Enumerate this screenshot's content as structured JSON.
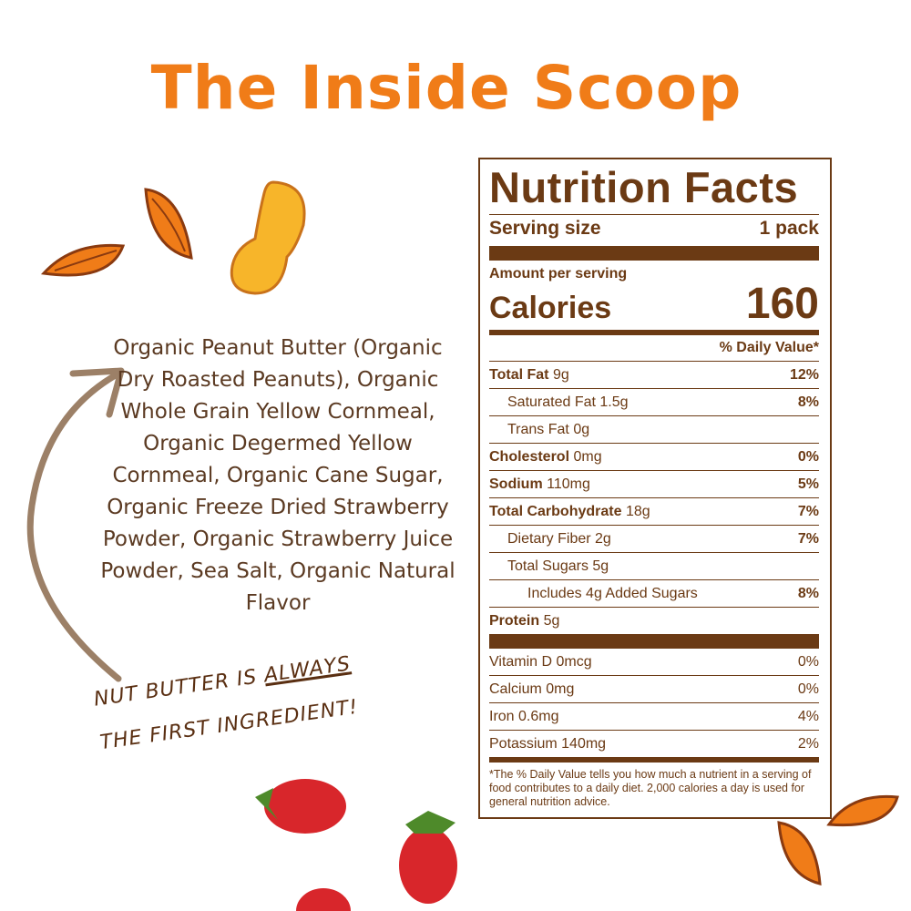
{
  "title": "The Inside Scoop",
  "ingredients": "Organic Peanut Butter (Organic Dry Roasted Peanuts), Organic Whole Grain Yellow Cornmeal, Organic Degermed Yellow Cornmeal, Organic Cane Sugar, Organic Freeze Dried Strawberry Powder, Organic Strawberry Juice Powder, Sea Salt, Organic Natural Flavor",
  "note": {
    "part1": "NUT BUTTER IS ",
    "emphasis": "ALWAYS",
    "part2": "THE FIRST INGREDIENT!"
  },
  "nutrition": {
    "title": "Nutrition Facts",
    "serving_label": "Serving size",
    "serving_value": "1 pack",
    "amount_per_serving": "Amount per serving",
    "calories_label": "Calories",
    "calories_value": "160",
    "dv_header": "% Daily Value*",
    "rows": [
      {
        "name": "Total Fat",
        "amount": "9g",
        "dv": "12%",
        "bold": true,
        "indent": 0
      },
      {
        "name": "Saturated Fat",
        "amount": "1.5g",
        "dv": "8%",
        "bold": false,
        "indent": 1
      },
      {
        "name": "Trans Fat",
        "amount": "0g",
        "dv": "",
        "bold": false,
        "indent": 1
      },
      {
        "name": "Cholesterol",
        "amount": "0mg",
        "dv": "0%",
        "bold": true,
        "indent": 0
      },
      {
        "name": "Sodium",
        "amount": "110mg",
        "dv": "5%",
        "bold": true,
        "indent": 0
      },
      {
        "name": "Total Carbohydrate",
        "amount": "18g",
        "dv": "7%",
        "bold": true,
        "indent": 0
      },
      {
        "name": "Dietary Fiber",
        "amount": "2g",
        "dv": "7%",
        "bold": false,
        "indent": 1
      },
      {
        "name": "Total Sugars",
        "amount": "5g",
        "dv": "",
        "bold": false,
        "indent": 1
      },
      {
        "name": "Includes 4g Added Sugars",
        "amount": "",
        "dv": "8%",
        "bold": false,
        "indent": 2
      },
      {
        "name": "Protein",
        "amount": "5g",
        "dv": "",
        "bold": true,
        "indent": 0
      }
    ],
    "vitamins": [
      {
        "name": "Vitamin D",
        "amount": "0mcg",
        "dv": "0%"
      },
      {
        "name": "Calcium",
        "amount": "0mg",
        "dv": "0%"
      },
      {
        "name": "Iron",
        "amount": "0.6mg",
        "dv": "4%"
      },
      {
        "name": "Potassium",
        "amount": "140mg",
        "dv": "2%"
      }
    ],
    "footnote": "*The % Daily Value tells you how much a nutrient in a serving of food contributes to a daily diet. 2,000 calories a day is used for general nutrition advice."
  },
  "colors": {
    "title": "#f07c18",
    "label": "#6b3a14",
    "arrow": "#9c8067"
  },
  "decorations": [
    "peanut-icon",
    "almond-icon",
    "strawberry-icon",
    "arrow-icon"
  ]
}
